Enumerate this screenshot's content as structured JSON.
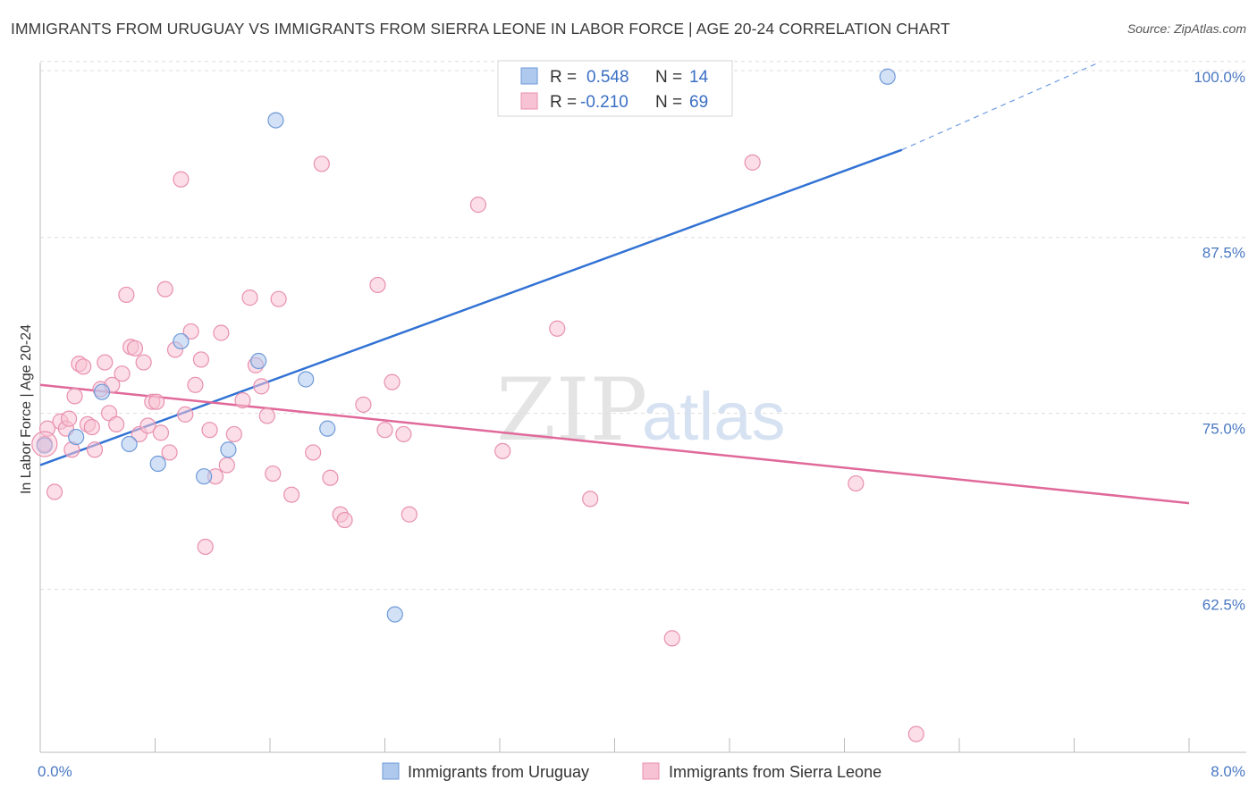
{
  "title": "IMMIGRANTS FROM URUGUAY VS IMMIGRANTS FROM SIERRA LEONE IN LABOR FORCE | AGE 20-24 CORRELATION CHART",
  "source": "Source: ZipAtlas.com",
  "watermark": {
    "zip": "ZIP",
    "atlas": "atlas"
  },
  "colors": {
    "uruguay_fill": "#aec8ee",
    "uruguay_stroke": "#6f9ad8",
    "uruguay_line": "#3272d4",
    "sierra_fill": "#f7c2d4",
    "sierra_stroke": "#e890ae",
    "sierra_line": "#e0699a",
    "tick_text": "#4a78c2",
    "grid": "#dddddd"
  },
  "stats": [
    {
      "r_label": "R =",
      "r_value": "0.548",
      "n_label": "N =",
      "n_value": "14"
    },
    {
      "r_label": "R =",
      "r_value": "-0.210",
      "n_label": "N =",
      "n_value": "69"
    }
  ],
  "chart_data": {
    "type": "scatter",
    "title": "IMMIGRANTS FROM URUGUAY VS IMMIGRANTS FROM SIERRA LEONE IN LABOR FORCE | AGE 20-24 CORRELATION CHART",
    "xlabel": "",
    "ylabel": "In Labor Force | Age 20-24",
    "xlim": [
      0,
      8
    ],
    "ylim": [
      52,
      101
    ],
    "x_tick_labels": [
      "0.0%",
      "8.0%"
    ],
    "y_ticks": [
      62.5,
      75.0,
      87.5,
      100.0
    ],
    "y_tick_labels": [
      "62.5%",
      "75.0%",
      "87.5%",
      "100.0%"
    ],
    "grid": true,
    "legend_position": "bottom",
    "series": [
      {
        "name": "Immigrants from Uruguay",
        "r": 0.548,
        "n": 14,
        "trend": {
          "x0": 0.0,
          "y0": 72.4,
          "x1": 6.0,
          "y1": 94.8,
          "dashed_to_x": 7.35,
          "dashed_to_y": 100.9
        },
        "points": [
          [
            0.03,
            73.8
          ],
          [
            0.25,
            74.4
          ],
          [
            0.43,
            77.6
          ],
          [
            0.62,
            73.9
          ],
          [
            0.82,
            72.5
          ],
          [
            0.98,
            81.2
          ],
          [
            1.14,
            71.6
          ],
          [
            1.31,
            73.5
          ],
          [
            1.52,
            79.8
          ],
          [
            1.64,
            96.9
          ],
          [
            1.85,
            78.5
          ],
          [
            2.0,
            75.0
          ],
          [
            2.47,
            61.8
          ],
          [
            5.9,
            100.0
          ]
        ]
      },
      {
        "name": "Immigrants from Sierra Leone",
        "r": -0.21,
        "n": 69,
        "trend": {
          "x0": 0.0,
          "y0": 78.1,
          "x1": 8.0,
          "y1": 69.7
        },
        "points": [
          [
            0.03,
            73.9
          ],
          [
            0.05,
            75.0
          ],
          [
            0.1,
            70.5
          ],
          [
            0.14,
            75.5
          ],
          [
            0.18,
            75.0
          ],
          [
            0.2,
            75.7
          ],
          [
            0.22,
            73.5
          ],
          [
            0.24,
            77.3
          ],
          [
            0.27,
            79.6
          ],
          [
            0.3,
            79.4
          ],
          [
            0.33,
            75.3
          ],
          [
            0.36,
            75.1
          ],
          [
            0.38,
            73.5
          ],
          [
            0.42,
            77.8
          ],
          [
            0.45,
            79.7
          ],
          [
            0.48,
            76.1
          ],
          [
            0.5,
            78.1
          ],
          [
            0.53,
            75.3
          ],
          [
            0.57,
            78.9
          ],
          [
            0.6,
            84.5
          ],
          [
            0.63,
            80.8
          ],
          [
            0.66,
            80.7
          ],
          [
            0.69,
            74.6
          ],
          [
            0.72,
            79.7
          ],
          [
            0.75,
            75.2
          ],
          [
            0.78,
            76.9
          ],
          [
            0.81,
            76.9
          ],
          [
            0.84,
            74.7
          ],
          [
            0.87,
            84.9
          ],
          [
            0.9,
            73.3
          ],
          [
            0.94,
            80.6
          ],
          [
            0.98,
            92.7
          ],
          [
            1.01,
            76.0
          ],
          [
            1.05,
            81.9
          ],
          [
            1.08,
            78.1
          ],
          [
            1.12,
            79.9
          ],
          [
            1.15,
            66.6
          ],
          [
            1.18,
            74.9
          ],
          [
            1.22,
            71.6
          ],
          [
            1.26,
            81.8
          ],
          [
            1.3,
            72.4
          ],
          [
            1.35,
            74.6
          ],
          [
            1.41,
            77.0
          ],
          [
            1.46,
            84.3
          ],
          [
            1.5,
            79.5
          ],
          [
            1.54,
            78.0
          ],
          [
            1.58,
            75.9
          ],
          [
            1.62,
            71.8
          ],
          [
            1.66,
            84.2
          ],
          [
            1.75,
            70.3
          ],
          [
            1.9,
            73.3
          ],
          [
            1.96,
            93.8
          ],
          [
            2.02,
            71.5
          ],
          [
            2.09,
            68.9
          ],
          [
            2.12,
            68.5
          ],
          [
            2.25,
            76.7
          ],
          [
            2.35,
            85.2
          ],
          [
            2.4,
            74.9
          ],
          [
            2.45,
            78.3
          ],
          [
            2.53,
            74.6
          ],
          [
            2.57,
            68.9
          ],
          [
            3.05,
            90.9
          ],
          [
            3.22,
            73.4
          ],
          [
            3.6,
            82.1
          ],
          [
            3.83,
            70.0
          ],
          [
            4.4,
            60.1
          ],
          [
            4.96,
            93.9
          ],
          [
            5.68,
            71.1
          ],
          [
            6.1,
            53.3
          ]
        ]
      }
    ]
  }
}
